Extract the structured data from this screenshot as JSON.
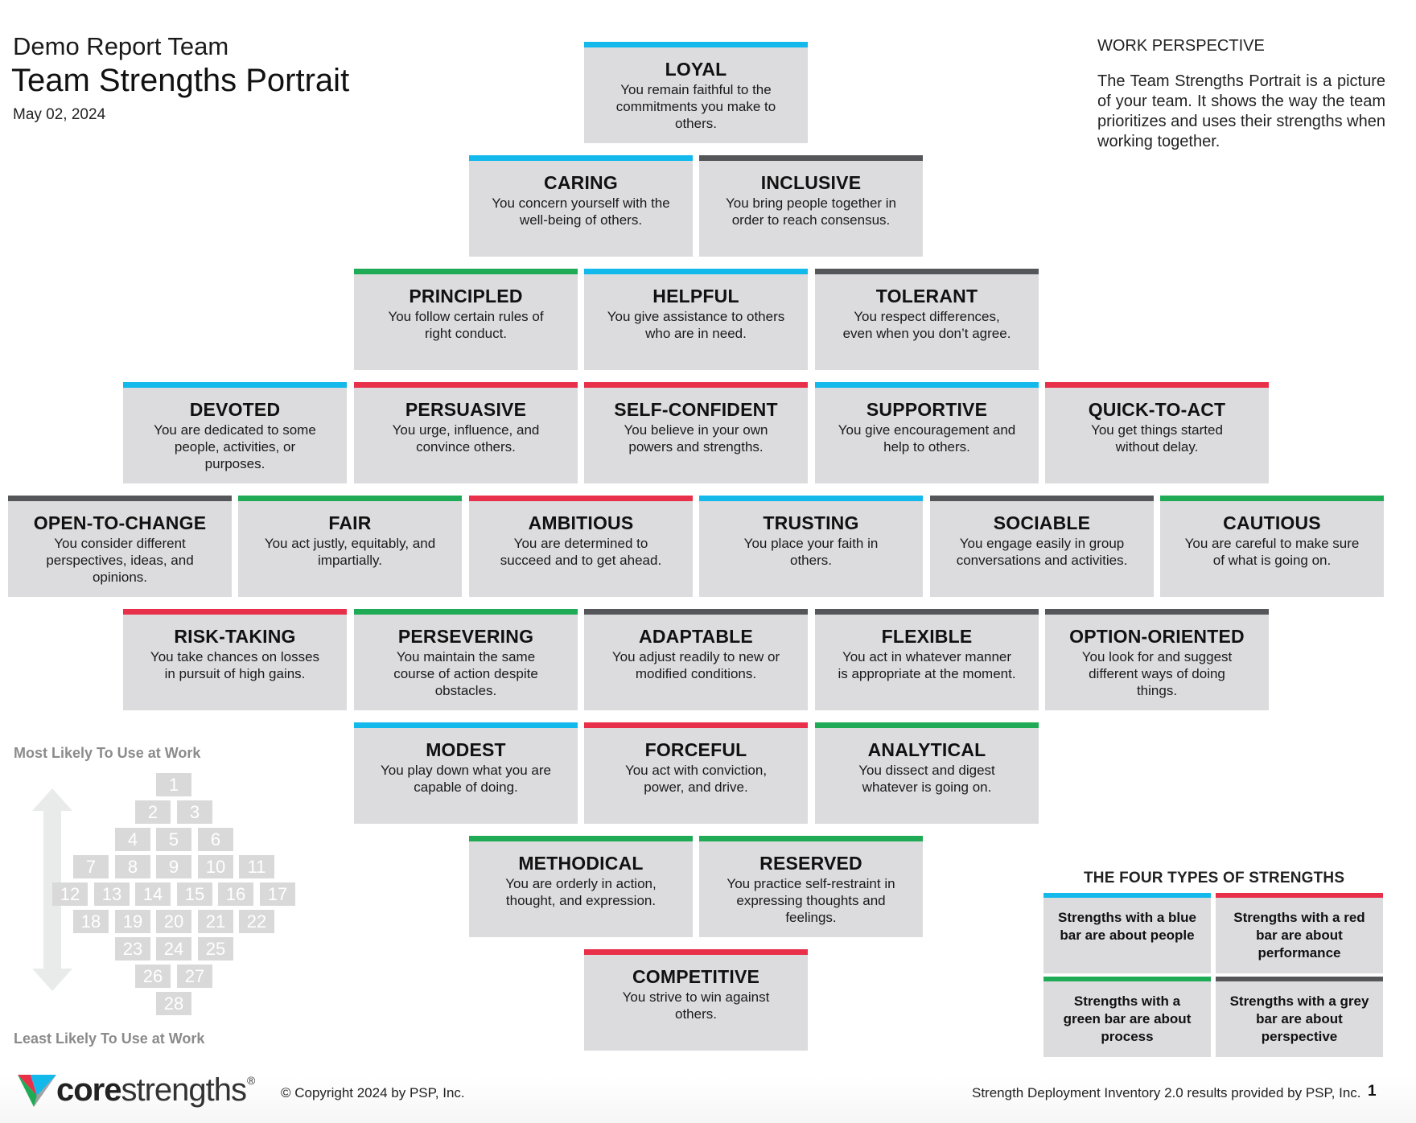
{
  "header": {
    "team_name": "Demo Report Team",
    "title": "Team Strengths Portrait",
    "date": "May 02, 2024"
  },
  "work_perspective": {
    "heading": "WORK PERSPECTIVE",
    "text": "The Team Strengths Portrait is a picture of your team. It shows the way the team prioritizes and uses their strengths when working together."
  },
  "colors": {
    "blue": "#14b9ec",
    "red": "#e8304a",
    "green": "#1fab55",
    "grey": "#55565a",
    "tile_bg": "#dcdcde"
  },
  "strengths": [
    {
      "rank": 1,
      "name": "LOYAL",
      "desc": "You remain faithful to the commitments you make to others.",
      "bar": "blue"
    },
    {
      "rank": 2,
      "name": "CARING",
      "desc": "You concern yourself with the well-being of others.",
      "bar": "blue"
    },
    {
      "rank": 3,
      "name": "INCLUSIVE",
      "desc": "You bring people together in order to reach consensus.",
      "bar": "grey"
    },
    {
      "rank": 4,
      "name": "PRINCIPLED",
      "desc": "You follow certain rules of right conduct.",
      "bar": "green"
    },
    {
      "rank": 5,
      "name": "HELPFUL",
      "desc": "You give assistance to others who are in need.",
      "bar": "blue"
    },
    {
      "rank": 6,
      "name": "TOLERANT",
      "desc": "You respect differences, even when you don’t agree.",
      "bar": "grey"
    },
    {
      "rank": 7,
      "name": "DEVOTED",
      "desc": "You are dedicated to some people, activities, or purposes.",
      "bar": "blue"
    },
    {
      "rank": 8,
      "name": "PERSUASIVE",
      "desc": "You urge, influence, and convince others.",
      "bar": "red"
    },
    {
      "rank": 9,
      "name": "SELF-CONFIDENT",
      "desc": "You believe in your own powers and strengths.",
      "bar": "red"
    },
    {
      "rank": 10,
      "name": "SUPPORTIVE",
      "desc": "You give encouragement and help to others.",
      "bar": "blue"
    },
    {
      "rank": 11,
      "name": "QUICK-TO-ACT",
      "desc": "You get things started without delay.",
      "bar": "red"
    },
    {
      "rank": 12,
      "name": "OPEN-TO-CHANGE",
      "desc": "You consider different perspectives, ideas, and opinions.",
      "bar": "grey"
    },
    {
      "rank": 13,
      "name": "FAIR",
      "desc": "You act justly, equitably, and impartially.",
      "bar": "green"
    },
    {
      "rank": 14,
      "name": "AMBITIOUS",
      "desc": "You are determined to succeed and to get ahead.",
      "bar": "red"
    },
    {
      "rank": 15,
      "name": "TRUSTING",
      "desc": "You place your faith in others.",
      "bar": "blue"
    },
    {
      "rank": 16,
      "name": "SOCIABLE",
      "desc": "You engage easily in group conversations and activities.",
      "bar": "grey"
    },
    {
      "rank": 17,
      "name": "CAUTIOUS",
      "desc": "You are careful to make sure of what is going on.",
      "bar": "green"
    },
    {
      "rank": 18,
      "name": "RISK-TAKING",
      "desc": "You take chances on losses in pursuit of high gains.",
      "bar": "red"
    },
    {
      "rank": 19,
      "name": "PERSEVERING",
      "desc": "You maintain the same course of action despite obstacles.",
      "bar": "green"
    },
    {
      "rank": 20,
      "name": "ADAPTABLE",
      "desc": "You adjust readily to new or modified conditions.",
      "bar": "grey"
    },
    {
      "rank": 21,
      "name": "FLEXIBLE",
      "desc": "You act in whatever manner is appropriate at the moment.",
      "bar": "grey"
    },
    {
      "rank": 22,
      "name": "OPTION-ORIENTED",
      "desc": "You look for and suggest different ways of doing things.",
      "bar": "grey"
    },
    {
      "rank": 23,
      "name": "MODEST",
      "desc": "You play down what you are capable of doing.",
      "bar": "blue"
    },
    {
      "rank": 24,
      "name": "FORCEFUL",
      "desc": "You act with conviction, power, and drive.",
      "bar": "red"
    },
    {
      "rank": 25,
      "name": "ANALYTICAL",
      "desc": "You dissect and digest whatever is going on.",
      "bar": "green"
    },
    {
      "rank": 26,
      "name": "METHODICAL",
      "desc": "You are orderly in action, thought, and expression.",
      "bar": "green"
    },
    {
      "rank": 27,
      "name": "RESERVED",
      "desc": "You practice self-restraint in expressing thoughts and feelings.",
      "bar": "green"
    },
    {
      "rank": 28,
      "name": "COMPETITIVE",
      "desc": "You strive to win against others.",
      "bar": "red"
    }
  ],
  "rank_legend": {
    "top_label": "Most Likely To Use at Work",
    "bottom_label": "Least Likely To Use at Work",
    "ranks": [
      "1",
      "2",
      "3",
      "4",
      "5",
      "6",
      "7",
      "8",
      "9",
      "10",
      "11",
      "12",
      "13",
      "14",
      "15",
      "16",
      "17",
      "18",
      "19",
      "20",
      "21",
      "22",
      "23",
      "24",
      "25",
      "26",
      "27",
      "28"
    ]
  },
  "four_types": {
    "heading": "THE FOUR TYPES OF STRENGTHS",
    "items": [
      {
        "bar": "blue",
        "text": "Strengths with a blue bar are about people"
      },
      {
        "bar": "red",
        "text": "Strengths with a red bar are about performance"
      },
      {
        "bar": "green",
        "text": "Strengths with a green bar are about process"
      },
      {
        "bar": "grey",
        "text": "Strengths with a grey bar are about perspective"
      }
    ]
  },
  "footer": {
    "logo_core": "core",
    "logo_strengths": "strengths",
    "logo_reg": "®",
    "copyright": "© Copyright 2024 by PSP, Inc.",
    "provider": "Strength Deployment Inventory 2.0 results provided by PSP, Inc.",
    "page_number": "1"
  }
}
